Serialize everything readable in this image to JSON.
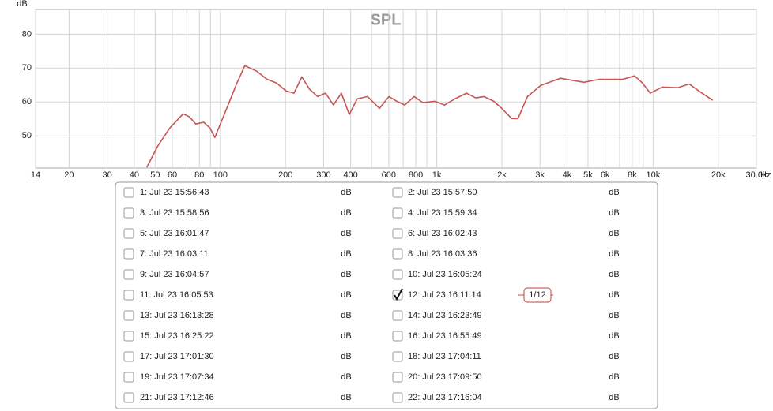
{
  "chart_data": {
    "type": "line",
    "title": "SPL",
    "ylabel": "dB",
    "xlabel": "Hz",
    "log_x": true,
    "grid": true,
    "xlim": [
      14,
      30000
    ],
    "ylim": [
      40.5,
      87.3
    ],
    "xticks": [
      14,
      20,
      30,
      40,
      50,
      60,
      80,
      100,
      200,
      300,
      400,
      600,
      800,
      {
        "value": 1000,
        "label": "1k"
      },
      {
        "value": 2000,
        "label": "2k"
      },
      {
        "value": 3000,
        "label": "3k"
      },
      {
        "value": 4000,
        "label": "4k"
      },
      {
        "value": 5000,
        "label": "5k"
      },
      {
        "value": 6000,
        "label": "6k"
      },
      {
        "value": 8000,
        "label": "8k"
      },
      {
        "value": 10000,
        "label": "10k"
      },
      {
        "value": 20000,
        "label": "20k"
      },
      {
        "value": 30000,
        "label": "30.0k"
      }
    ],
    "xgrid_minor": [
      70,
      90,
      500,
      700,
      900,
      7000,
      9000
    ],
    "yticks": [
      50,
      60,
      70,
      80
    ],
    "series": [
      {
        "color": "#c85454",
        "x": [
          45.7,
          51.4,
          58.4,
          67.3,
          72.0,
          77.0,
          83.8,
          89.6,
          94.3,
          100.8,
          109.7,
          119.3,
          129.8,
          147.3,
          164.3,
          181.9,
          200.9,
          218.8,
          238.0,
          258.9,
          281.6,
          306.3,
          333.2,
          362.4,
          394.3,
          428.9,
          478.6,
          543.8,
          601.5,
          653.9,
          711.4,
          786.4,
          862.3,
          981.4,
          1087,
          1212,
          1372,
          1513,
          1654,
          1834,
          1997,
          2221,
          2373,
          2626,
          3026,
          3726,
          4787,
          5647,
          7247,
          8208,
          8921,
          9703,
          10990,
          12970,
          14680,
          16640,
          18850
        ],
        "values": [
          40.7,
          47.0,
          52.3,
          56.5,
          55.6,
          53.5,
          54.0,
          52.3,
          49.5,
          54.0,
          59.8,
          65.6,
          70.7,
          69.1,
          66.7,
          65.6,
          63.3,
          62.6,
          67.4,
          63.7,
          61.6,
          62.6,
          59.1,
          62.6,
          56.3,
          60.9,
          61.6,
          58.1,
          61.6,
          60.2,
          59.1,
          61.6,
          59.8,
          60.2,
          59.1,
          60.9,
          62.6,
          61.2,
          61.6,
          60.2,
          58.1,
          55.1,
          55.1,
          61.6,
          64.9,
          67.0,
          65.8,
          66.7,
          66.7,
          67.7,
          65.6,
          62.6,
          64.4,
          64.2,
          65.3,
          62.8,
          60.5
        ]
      }
    ]
  },
  "measurements": [
    {
      "label": "1: Jul 23 15:56:43",
      "unit": "dB",
      "color": "#b030b0",
      "checked": false
    },
    {
      "label": "2: Jul 23 15:57:50",
      "unit": "dB",
      "color": "#b09000",
      "checked": false
    },
    {
      "label": "3: Jul 23 15:58:56",
      "unit": "dB",
      "color": "#3090a8",
      "checked": false
    },
    {
      "label": "4: Jul 23 15:59:34",
      "unit": "dB",
      "color": "#a01010",
      "checked": false
    },
    {
      "label": "5: Jul 23 16:01:47",
      "unit": "dB",
      "color": "#a020a0",
      "checked": false
    },
    {
      "label": "6: Jul 23 16:02:43",
      "unit": "dB",
      "color": "#207878",
      "checked": false
    },
    {
      "label": "7: Jul 23 16:03:11",
      "unit": "dB",
      "color": "#3090a8",
      "checked": false
    },
    {
      "label": "8: Jul 23 16:03:36",
      "unit": "dB",
      "color": "#20a070",
      "checked": false
    },
    {
      "label": "9: Jul 23 16:04:57",
      "unit": "dB",
      "color": "#101060",
      "checked": false
    },
    {
      "label": "10: Jul 23 16:05:24",
      "unit": "dB",
      "color": "#209090",
      "checked": false
    },
    {
      "label": "11: Jul 23 16:05:53",
      "unit": "dB",
      "color": "#107070",
      "checked": false
    },
    {
      "label": "12: Jul 23 16:11:14",
      "unit": "dB",
      "color": "#b02020",
      "checked": true
    },
    {
      "label": "13: Jul 23 16:13:28",
      "unit": "dB",
      "color": "#20a060",
      "checked": false
    },
    {
      "label": "14: Jul 23 16:23:49",
      "unit": "dB",
      "color": "#c09000",
      "checked": false
    },
    {
      "label": "15: Jul 23 16:25:22",
      "unit": "dB",
      "color": "#a030a0",
      "checked": false
    },
    {
      "label": "16: Jul 23 16:55:49",
      "unit": "dB",
      "color": "#8040a0",
      "checked": false
    },
    {
      "label": "17: Jul 23 17:01:30",
      "unit": "dB",
      "color": "#a020a0",
      "checked": false
    },
    {
      "label": "18: Jul 23 17:04:11",
      "unit": "dB",
      "color": "#102070",
      "checked": false
    },
    {
      "label": "19: Jul 23 17:07:34",
      "unit": "dB",
      "color": "#308020",
      "checked": false
    },
    {
      "label": "20: Jul 23 17:09:50",
      "unit": "dB",
      "color": "#208020",
      "checked": false
    },
    {
      "label": "21: Jul 23 17:12:46",
      "unit": "dB",
      "color": "#101070",
      "checked": false
    },
    {
      "label": "22: Jul 23 17:16:04",
      "unit": "dB",
      "color": "#b02020",
      "checked": false
    }
  ],
  "smoothing": "1/12"
}
